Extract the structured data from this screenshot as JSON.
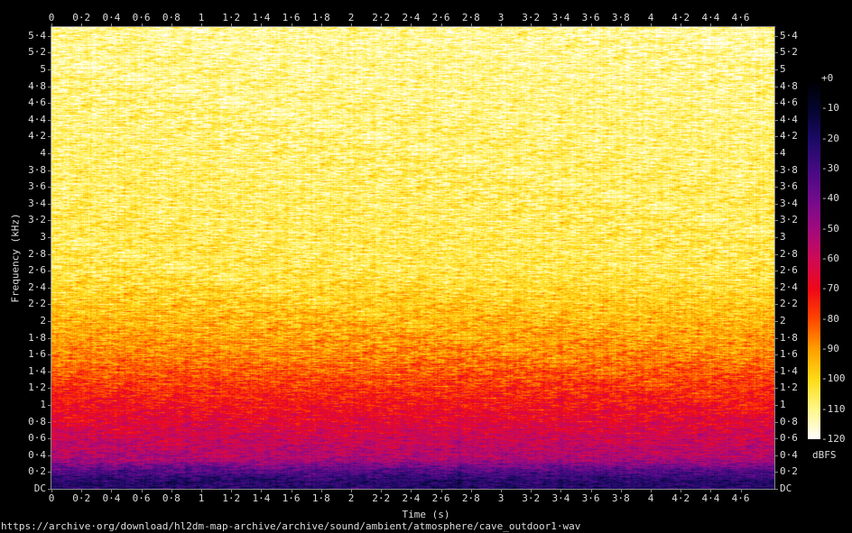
{
  "chart_data": {
    "type": "heatmap",
    "title": "",
    "xlabel": "Time (s)",
    "ylabel": "Frequency (kHz)",
    "x_ticks": [
      "0",
      "0·2",
      "0·4",
      "0·6",
      "0·8",
      "1",
      "1·2",
      "1·4",
      "1·6",
      "1·8",
      "2",
      "2·2",
      "2·4",
      "2·6",
      "2·8",
      "3",
      "3·2",
      "3·4",
      "3·6",
      "3·8",
      "4",
      "4·2",
      "4·4",
      "4·6"
    ],
    "y_ticks": [
      "DC",
      "0·2",
      "0·4",
      "0·6",
      "0·8",
      "1",
      "1·2",
      "1·4",
      "1·6",
      "1·8",
      "2",
      "2·2",
      "2·4",
      "2·6",
      "2·8",
      "3",
      "3·2",
      "3·4",
      "3·6",
      "3·8",
      "4",
      "4·2",
      "4·4",
      "4·6",
      "4·8",
      "5",
      "5·2",
      "5·4"
    ],
    "xlim": [
      0,
      4.82
    ],
    "ylim": [
      0,
      5.51
    ],
    "colorbar": {
      "label": "dBFS",
      "ticks": [
        "+0",
        "-10",
        "-20",
        "-30",
        "-40",
        "-50",
        "-60",
        "-70",
        "-80",
        "-90",
        "-100",
        "-110",
        "-120"
      ],
      "range": [
        -120,
        0
      ],
      "colors": [
        "#000000",
        "#05052e",
        "#1c0a66",
        "#450a82",
        "#720c8c",
        "#a10a7e",
        "#d00a55",
        "#f00818",
        "#ff4800",
        "#ffa000",
        "#ffdc18",
        "#fff88a",
        "#ffffff"
      ]
    },
    "grid": false
  },
  "footer": "https://archive·org/download/hl2dm-map-archive/archive/sound/ambient/atmosphere/cave_outdoor1·wav"
}
